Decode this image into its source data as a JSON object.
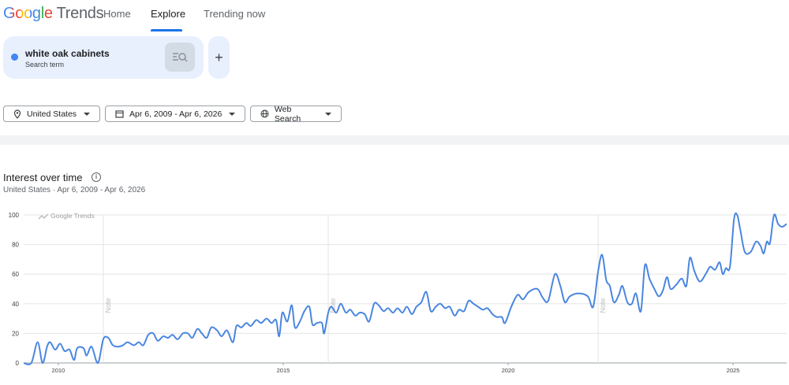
{
  "header": {
    "logo": "Google",
    "logo_product": "Trends",
    "nav": [
      "Home",
      "Explore",
      "Trending now"
    ]
  },
  "search": {
    "term": "white oak cabinets",
    "type": "Search term"
  },
  "filters": [
    "United States",
    "Apr 6, 2009 - Apr 6, 2026",
    "Web Search"
  ],
  "section": {
    "title": "Interest over time",
    "region": "United States",
    "period": "Apr 6, 2009 - Apr 6, 2026"
  },
  "chart_data": {
    "type": "line",
    "watermark": "Google Trends",
    "color": "#4a86e0",
    "grid": true,
    "xlim": [
      2009.23,
      2026.19
    ],
    "xticks": [
      2010,
      2015,
      2020,
      2025
    ],
    "ylim": [
      0,
      100
    ],
    "yticks": [
      0,
      20,
      40,
      60,
      80,
      100
    ],
    "annotations": [
      {
        "x": 2011.0,
        "label": "Note"
      },
      {
        "x": 2016.0,
        "label": "Note"
      },
      {
        "x": 2022.0,
        "label": "Note"
      }
    ],
    "x": [
      2009.23,
      2009.4,
      2009.54,
      2009.65,
      2009.75,
      2009.82,
      2009.93,
      2010.04,
      2010.14,
      2010.25,
      2010.35,
      2010.42,
      2010.56,
      2010.63,
      2010.74,
      2010.88,
      2011.0,
      2011.11,
      2011.21,
      2011.33,
      2011.44,
      2011.54,
      2011.68,
      2011.79,
      2011.89,
      2012.0,
      2012.11,
      2012.21,
      2012.33,
      2012.44,
      2012.54,
      2012.65,
      2012.77,
      2012.88,
      2012.98,
      2013.09,
      2013.19,
      2013.3,
      2013.4,
      2013.53,
      2013.63,
      2013.75,
      2013.88,
      2013.96,
      2014.07,
      2014.18,
      2014.28,
      2014.4,
      2014.51,
      2014.63,
      2014.74,
      2014.84,
      2014.91,
      2014.98,
      2015.09,
      2015.19,
      2015.26,
      2015.37,
      2015.47,
      2015.58,
      2015.65,
      2015.75,
      2015.86,
      2015.91,
      2016.0,
      2016.07,
      2016.18,
      2016.28,
      2016.39,
      2016.49,
      2016.6,
      2016.7,
      2016.81,
      2016.91,
      2017.02,
      2017.12,
      2017.23,
      2017.33,
      2017.44,
      2017.54,
      2017.65,
      2017.75,
      2017.86,
      2017.96,
      2018.07,
      2018.18,
      2018.28,
      2018.39,
      2018.49,
      2018.6,
      2018.7,
      2018.81,
      2018.91,
      2019.02,
      2019.12,
      2019.23,
      2019.33,
      2019.44,
      2019.54,
      2019.65,
      2019.75,
      2019.86,
      2019.93,
      2020.07,
      2020.21,
      2020.33,
      2020.46,
      2020.65,
      2020.77,
      2020.89,
      2021.04,
      2021.16,
      2021.26,
      2021.37,
      2021.56,
      2021.77,
      2021.89,
      2022.0,
      2022.09,
      2022.18,
      2022.26,
      2022.35,
      2022.46,
      2022.54,
      2022.65,
      2022.75,
      2022.84,
      2022.95,
      2023.04,
      2023.14,
      2023.25,
      2023.35,
      2023.44,
      2023.53,
      2023.61,
      2023.74,
      2023.86,
      2023.96,
      2024.04,
      2024.14,
      2024.26,
      2024.39,
      2024.49,
      2024.6,
      2024.7,
      2024.77,
      2024.84,
      2024.93,
      2025.02,
      2025.09,
      2025.16,
      2025.26,
      2025.39,
      2025.51,
      2025.61,
      2025.68,
      2025.75,
      2025.82,
      2025.91,
      2026.0,
      2026.09,
      2026.19
    ],
    "values": [
      0,
      0,
      14,
      0,
      11,
      14,
      9,
      13,
      8,
      9,
      2,
      10,
      10,
      5,
      11,
      0,
      16,
      17,
      12,
      11,
      12,
      14,
      12,
      14,
      12,
      19,
      20,
      15,
      18,
      17,
      19,
      16,
      20,
      20,
      17,
      23,
      20,
      17,
      24,
      22,
      18,
      22,
      14,
      25,
      24,
      27,
      25,
      29,
      27,
      30,
      27,
      29,
      18,
      34,
      28,
      39,
      24,
      28,
      35,
      38,
      26,
      27,
      27,
      20,
      34,
      38,
      34,
      40,
      34,
      36,
      32,
      34,
      33,
      28,
      40,
      39,
      35,
      37,
      34,
      37,
      34,
      38,
      33,
      38,
      41,
      48,
      35,
      38,
      40,
      37,
      38,
      32,
      36,
      35,
      42,
      40,
      38,
      36,
      37,
      33,
      31,
      31,
      27,
      38,
      46,
      43,
      48,
      50,
      44,
      42,
      60,
      52,
      41,
      45,
      47,
      45,
      38,
      62,
      73,
      56,
      52,
      41,
      46,
      52,
      41,
      40,
      47,
      35,
      66,
      57,
      50,
      45,
      49,
      58,
      50,
      53,
      57,
      52,
      71,
      62,
      55,
      60,
      65,
      63,
      68,
      60,
      64,
      65,
      97,
      100,
      90,
      75,
      75,
      82,
      79,
      74,
      82,
      81,
      100,
      94,
      92,
      94
    ]
  }
}
